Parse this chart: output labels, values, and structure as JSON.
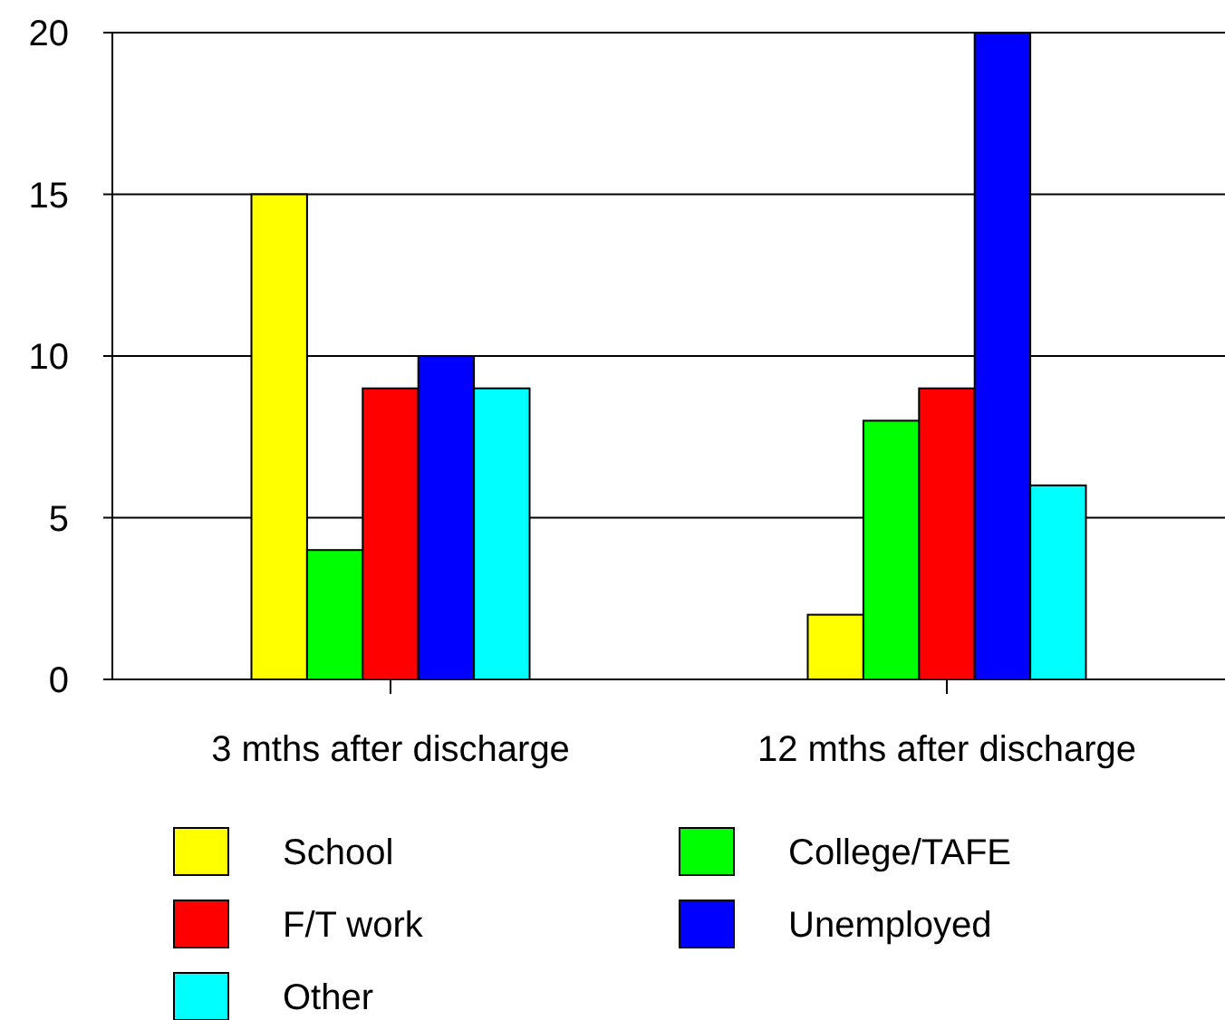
{
  "chart_data": {
    "type": "bar",
    "categories": [
      "3 mths after discharge",
      "12 mths after discharge"
    ],
    "series": [
      {
        "name": "School",
        "color": "#ffff00",
        "values": [
          15,
          2
        ]
      },
      {
        "name": "College/TAFE",
        "color": "#00ff00",
        "values": [
          4,
          8
        ]
      },
      {
        "name": "F/T work",
        "color": "#ff0000",
        "values": [
          9,
          9
        ]
      },
      {
        "name": "Unemployed",
        "color": "#0000ff",
        "values": [
          10,
          20
        ]
      },
      {
        "name": "Other",
        "color": "#00ffff",
        "values": [
          9,
          6
        ]
      }
    ],
    "ylim": [
      0,
      20
    ],
    "yticks": [
      0,
      5,
      10,
      15,
      20
    ],
    "grid": "y",
    "legend": "bottom"
  }
}
